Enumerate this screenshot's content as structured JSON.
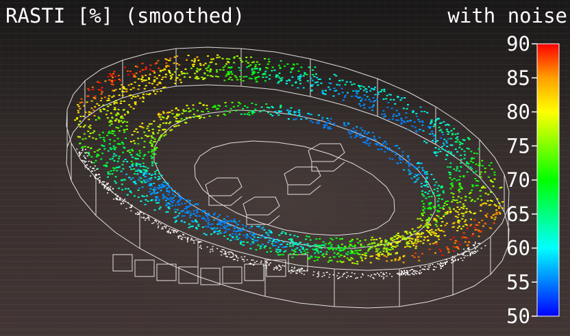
{
  "header": {
    "title": "RASTI [%] (smoothed)",
    "subtitle": "with noise"
  },
  "chart_data": {
    "type": "heatmap",
    "title": "RASTI [%] (smoothed)",
    "subtitle": "with noise",
    "colorbar": {
      "min": 50,
      "max": 90,
      "ticks": [
        90,
        85,
        80,
        75,
        70,
        65,
        60,
        55,
        50
      ],
      "tick_labels": [
        "90",
        "85",
        "80",
        "75",
        "70",
        "65",
        "60",
        "55",
        "50"
      ],
      "colors": [
        "#0000ff",
        "#0080ff",
        "#00ffff",
        "#00ff80",
        "#00ff00",
        "#80ff00",
        "#ffff00",
        "#ffa000",
        "#ff0000"
      ]
    },
    "value_range": [
      55,
      90
    ],
    "colors": {
      "wireframe": "#ffffff",
      "background": "#2a2624"
    }
  }
}
